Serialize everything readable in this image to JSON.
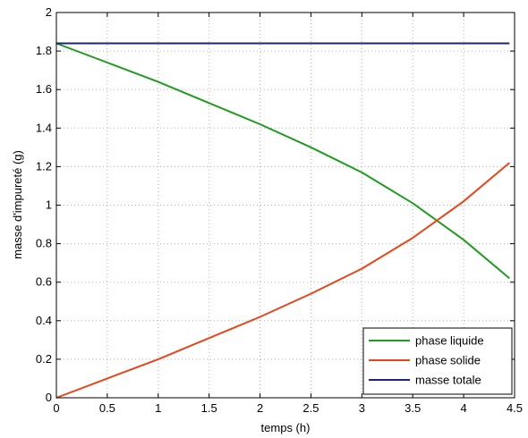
{
  "chart_data": {
    "type": "line",
    "title": "",
    "xlabel": "temps (h)",
    "ylabel": "masse d'impureté (g)",
    "xlim": [
      0,
      4.5
    ],
    "ylim": [
      0,
      2
    ],
    "xticks": [
      0,
      0.5,
      1,
      1.5,
      2,
      2.5,
      3,
      3.5,
      4,
      4.5
    ],
    "yticks": [
      0,
      0.2,
      0.4,
      0.6,
      0.8,
      1,
      1.2,
      1.4,
      1.6,
      1.8,
      2
    ],
    "xtick_labels": [
      "0",
      "0.5",
      "1",
      "1.5",
      "2",
      "2.5",
      "3",
      "3.5",
      "4",
      "4.5"
    ],
    "ytick_labels": [
      "0",
      "0.2",
      "0.4",
      "0.6",
      "0.8",
      "1",
      "1.2",
      "1.4",
      "1.6",
      "1.8",
      "2"
    ],
    "grid": true,
    "legend_position": "bottom-right",
    "x": [
      0,
      0.5,
      1,
      1.5,
      2,
      2.5,
      3,
      3.5,
      4,
      4.45
    ],
    "series": [
      {
        "name": "phase liquide",
        "color": "#1f9c1f",
        "values": [
          1.84,
          1.74,
          1.64,
          1.53,
          1.42,
          1.3,
          1.17,
          1.01,
          0.82,
          0.62
        ]
      },
      {
        "name": "phase solide",
        "color": "#e8461a",
        "values": [
          0.0,
          0.1,
          0.2,
          0.31,
          0.42,
          0.54,
          0.67,
          0.83,
          1.02,
          1.22
        ]
      },
      {
        "name": "masse totale",
        "color": "#1a237e",
        "values": [
          1.84,
          1.84,
          1.84,
          1.84,
          1.84,
          1.84,
          1.84,
          1.84,
          1.84,
          1.84
        ]
      }
    ]
  }
}
